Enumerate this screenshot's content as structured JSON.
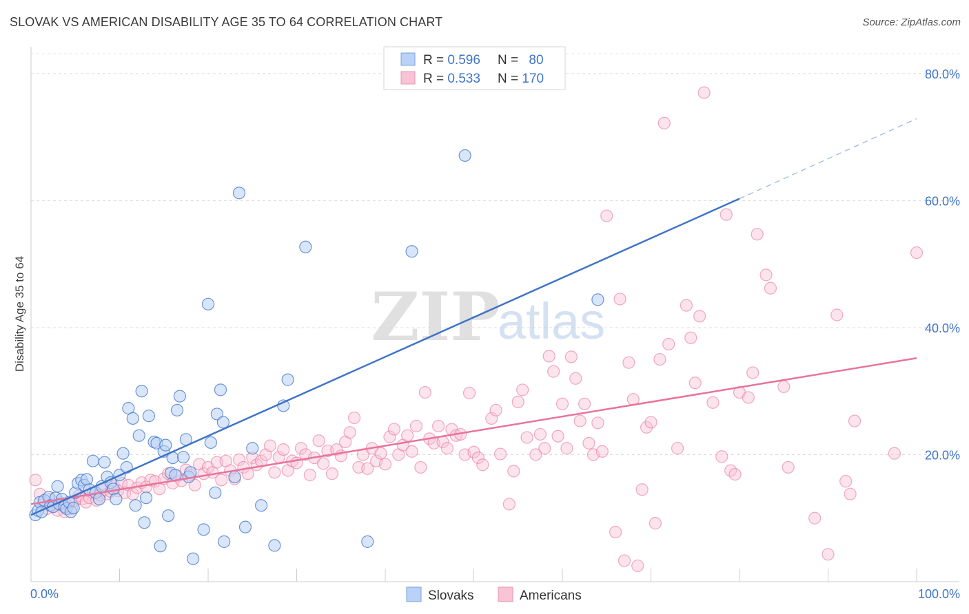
{
  "header": {
    "title": "SLOVAK VS AMERICAN DISABILITY AGE 35 TO 64 CORRELATION CHART",
    "source": "Source: ZipAtlas.com"
  },
  "watermark": {
    "zip": "ZIP",
    "atlas": "atlas"
  },
  "legend_top": {
    "rows": [
      {
        "r_label": "R = ",
        "r_value": "0.596",
        "n_label": "N = ",
        "n_value": "80"
      },
      {
        "r_label": "R = ",
        "r_value": "0.533",
        "n_label": "N = ",
        "n_value": "170"
      }
    ]
  },
  "legend_bottom": {
    "items": [
      "Slovaks",
      "Americans"
    ]
  },
  "chart_data": {
    "type": "scatter",
    "title": "SLOVAK VS AMERICAN DISABILITY AGE 35 TO 64 CORRELATION CHART",
    "xlabel": "",
    "ylabel": "Disability Age 35 to 64",
    "xlim": [
      0,
      100
    ],
    "ylim": [
      0,
      84
    ],
    "x_tick_labels": [
      "0.0%",
      "100.0%"
    ],
    "y_ticks": [
      20,
      40,
      60,
      80
    ],
    "y_tick_labels": [
      "20.0%",
      "40.0%",
      "60.0%",
      "80.0%"
    ],
    "grid": true,
    "legend_position": "top-center",
    "colors": {
      "slovaks": "#3f74c6",
      "americans": "#e8739c",
      "slovaks_fill": "#b9d2f5",
      "americans_fill": "#f8c3d4"
    },
    "series": [
      {
        "name": "Slovaks",
        "trend": {
          "x0": 0,
          "y0": 10.5,
          "x1": 80,
          "y1": 60.3,
          "dashed_to_x": 100,
          "dashed_to_y": 72.9
        },
        "points": [
          [
            0.5,
            10.5
          ],
          [
            0.8,
            11.2
          ],
          [
            1.0,
            12.5
          ],
          [
            1.2,
            11.0
          ],
          [
            1.5,
            12.8
          ],
          [
            2.0,
            13.3
          ],
          [
            2.2,
            12.0
          ],
          [
            2.5,
            11.8
          ],
          [
            2.8,
            13.2
          ],
          [
            3.0,
            15.0
          ],
          [
            3.2,
            12.2
          ],
          [
            3.5,
            13.0
          ],
          [
            3.8,
            11.8
          ],
          [
            4.0,
            11.5
          ],
          [
            4.3,
            12.5
          ],
          [
            4.5,
            11.0
          ],
          [
            4.8,
            11.6
          ],
          [
            5.0,
            14.0
          ],
          [
            5.3,
            15.5
          ],
          [
            5.7,
            16.0
          ],
          [
            6.0,
            15.2
          ],
          [
            6.3,
            16.1
          ],
          [
            6.6,
            14.5
          ],
          [
            7.0,
            19.0
          ],
          [
            7.3,
            14.0
          ],
          [
            7.7,
            13.0
          ],
          [
            8.0,
            15.0
          ],
          [
            8.3,
            18.8
          ],
          [
            8.6,
            16.5
          ],
          [
            9.0,
            15.6
          ],
          [
            9.3,
            14.6
          ],
          [
            9.6,
            13.0
          ],
          [
            10.0,
            16.8
          ],
          [
            10.4,
            20.2
          ],
          [
            10.8,
            18.0
          ],
          [
            11.0,
            27.3
          ],
          [
            11.5,
            25.7
          ],
          [
            11.8,
            12.0
          ],
          [
            12.2,
            23.0
          ],
          [
            12.5,
            30.0
          ],
          [
            12.8,
            9.3
          ],
          [
            13.0,
            13.2
          ],
          [
            13.3,
            26.1
          ],
          [
            13.9,
            22.0
          ],
          [
            14.2,
            21.8
          ],
          [
            14.6,
            5.6
          ],
          [
            15.0,
            20.5
          ],
          [
            15.2,
            21.5
          ],
          [
            15.5,
            10.4
          ],
          [
            15.8,
            17.1
          ],
          [
            16.0,
            19.5
          ],
          [
            16.3,
            16.8
          ],
          [
            16.5,
            27.0
          ],
          [
            16.8,
            29.2
          ],
          [
            17.2,
            19.6
          ],
          [
            17.5,
            22.4
          ],
          [
            17.8,
            16.5
          ],
          [
            18.0,
            17.2
          ],
          [
            18.3,
            3.6
          ],
          [
            19.5,
            8.2
          ],
          [
            20.0,
            43.7
          ],
          [
            20.3,
            21.9
          ],
          [
            20.8,
            14.0
          ],
          [
            21.0,
            26.4
          ],
          [
            21.4,
            30.2
          ],
          [
            21.7,
            25.1
          ],
          [
            21.8,
            6.3
          ],
          [
            23.0,
            16.5
          ],
          [
            23.5,
            61.2
          ],
          [
            24.2,
            8.6
          ],
          [
            25.0,
            21.0
          ],
          [
            26.0,
            12.0
          ],
          [
            27.5,
            5.7
          ],
          [
            28.5,
            27.7
          ],
          [
            29.0,
            31.8
          ],
          [
            31.0,
            52.7
          ],
          [
            38.0,
            6.3
          ],
          [
            43.0,
            52.0
          ],
          [
            49.0,
            67.1
          ],
          [
            64.0,
            44.4
          ]
        ]
      },
      {
        "name": "Americans",
        "trend": {
          "x0": 0,
          "y0": 12.2,
          "x1": 100,
          "y1": 35.2
        },
        "points": [
          [
            0.5,
            16.0
          ],
          [
            1.0,
            13.8
          ],
          [
            1.4,
            12.5
          ],
          [
            1.8,
            11.5
          ],
          [
            2.2,
            13.0
          ],
          [
            2.6,
            12.0
          ],
          [
            3.0,
            11.2
          ],
          [
            3.4,
            12.4
          ],
          [
            3.8,
            11.0
          ],
          [
            4.2,
            12.0
          ],
          [
            4.6,
            11.5
          ],
          [
            5.0,
            12.8
          ],
          [
            5.4,
            13.5
          ],
          [
            5.8,
            13.0
          ],
          [
            6.2,
            12.5
          ],
          [
            6.6,
            13.2
          ],
          [
            7.0,
            14.0
          ],
          [
            7.4,
            12.8
          ],
          [
            7.8,
            13.6
          ],
          [
            8.2,
            14.5
          ],
          [
            8.6,
            13.8
          ],
          [
            9.0,
            14.2
          ],
          [
            9.4,
            15.0
          ],
          [
            9.8,
            14.3
          ],
          [
            10.2,
            15.5
          ],
          [
            10.6,
            14.0
          ],
          [
            11.0,
            15.2
          ],
          [
            11.5,
            13.8
          ],
          [
            12.0,
            14.8
          ],
          [
            12.5,
            15.6
          ],
          [
            13.0,
            14.9
          ],
          [
            13.5,
            16.0
          ],
          [
            14.0,
            15.8
          ],
          [
            14.5,
            14.6
          ],
          [
            15.0,
            16.2
          ],
          [
            15.5,
            17.0
          ],
          [
            16.0,
            15.5
          ],
          [
            16.5,
            16.6
          ],
          [
            17.0,
            15.9
          ],
          [
            17.5,
            17.6
          ],
          [
            18.0,
            16.8
          ],
          [
            18.5,
            15.2
          ],
          [
            19.0,
            18.5
          ],
          [
            19.5,
            17.0
          ],
          [
            20.0,
            18.0
          ],
          [
            20.5,
            17.2
          ],
          [
            21.0,
            18.8
          ],
          [
            21.5,
            16.0
          ],
          [
            22.0,
            19.0
          ],
          [
            22.5,
            17.5
          ],
          [
            23.0,
            16.2
          ],
          [
            23.5,
            19.2
          ],
          [
            24.0,
            18.0
          ],
          [
            24.5,
            17.0
          ],
          [
            25.0,
            19.5
          ],
          [
            25.5,
            18.4
          ],
          [
            26.0,
            19.0
          ],
          [
            26.5,
            20.0
          ],
          [
            27.0,
            21.4
          ],
          [
            27.5,
            17.2
          ],
          [
            28.0,
            19.6
          ],
          [
            28.5,
            20.8
          ],
          [
            29.0,
            17.5
          ],
          [
            29.5,
            19.0
          ],
          [
            30.0,
            18.7
          ],
          [
            30.5,
            21.0
          ],
          [
            31.0,
            20.0
          ],
          [
            31.5,
            16.8
          ],
          [
            32.0,
            19.5
          ],
          [
            32.5,
            22.2
          ],
          [
            33.0,
            18.6
          ],
          [
            33.5,
            20.6
          ],
          [
            34.0,
            17.0
          ],
          [
            34.5,
            20.8
          ],
          [
            35.0,
            19.8
          ],
          [
            35.5,
            22.0
          ],
          [
            36.0,
            23.5
          ],
          [
            36.5,
            25.8
          ],
          [
            37.0,
            18.0
          ],
          [
            37.5,
            20.0
          ],
          [
            38.0,
            17.8
          ],
          [
            38.5,
            21.0
          ],
          [
            39.0,
            19.0
          ],
          [
            39.5,
            20.2
          ],
          [
            40.0,
            18.5
          ],
          [
            40.5,
            22.8
          ],
          [
            41.0,
            24.0
          ],
          [
            41.5,
            20.0
          ],
          [
            42.0,
            21.5
          ],
          [
            42.5,
            23.0
          ],
          [
            43.0,
            20.5
          ],
          [
            43.5,
            24.5
          ],
          [
            44.0,
            18.0
          ],
          [
            44.5,
            29.8
          ],
          [
            45.0,
            22.5
          ],
          [
            45.5,
            21.8
          ],
          [
            46.0,
            24.5
          ],
          [
            46.5,
            22.0
          ],
          [
            47.0,
            21.0
          ],
          [
            47.5,
            24.0
          ],
          [
            48.0,
            23.0
          ],
          [
            48.5,
            23.2
          ],
          [
            49.0,
            20.0
          ],
          [
            49.5,
            29.7
          ],
          [
            50.0,
            20.4
          ],
          [
            50.5,
            19.5
          ],
          [
            51.0,
            18.4
          ],
          [
            52.0,
            25.7
          ],
          [
            52.5,
            27.0
          ],
          [
            53.0,
            20.1
          ],
          [
            54.0,
            12.2
          ],
          [
            54.5,
            17.4
          ],
          [
            55.0,
            28.3
          ],
          [
            55.5,
            30.2
          ],
          [
            56.0,
            22.7
          ],
          [
            57.0,
            20.0
          ],
          [
            57.5,
            23.2
          ],
          [
            58.0,
            21.0
          ],
          [
            58.5,
            35.5
          ],
          [
            59.0,
            33.1
          ],
          [
            59.5,
            22.9
          ],
          [
            60.0,
            28.0
          ],
          [
            60.5,
            21.0
          ],
          [
            61.0,
            35.4
          ],
          [
            61.5,
            32.0
          ],
          [
            62.0,
            25.3
          ],
          [
            62.5,
            28.0
          ],
          [
            63.0,
            21.8
          ],
          [
            63.5,
            20.0
          ],
          [
            64.0,
            25.0
          ],
          [
            64.5,
            20.5
          ],
          [
            65.0,
            57.6
          ],
          [
            66.0,
            7.8
          ],
          [
            66.5,
            44.5
          ],
          [
            67.0,
            3.3
          ],
          [
            67.5,
            34.5
          ],
          [
            68.0,
            28.7
          ],
          [
            68.5,
            2.5
          ],
          [
            69.0,
            14.5
          ],
          [
            69.5,
            24.3
          ],
          [
            70.0,
            25.1
          ],
          [
            70.5,
            9.2
          ],
          [
            71.0,
            35.0
          ],
          [
            71.5,
            72.2
          ],
          [
            72.0,
            37.4
          ],
          [
            73.0,
            21.0
          ],
          [
            74.0,
            43.5
          ],
          [
            74.5,
            38.4
          ],
          [
            75.0,
            31.3
          ],
          [
            75.5,
            41.8
          ],
          [
            76.0,
            77.0
          ],
          [
            77.0,
            28.2
          ],
          [
            78.0,
            19.7
          ],
          [
            78.5,
            57.8
          ],
          [
            79.0,
            17.5
          ],
          [
            79.5,
            16.9
          ],
          [
            80.0,
            29.8
          ],
          [
            81.0,
            29.0
          ],
          [
            81.5,
            32.9
          ],
          [
            82.0,
            54.7
          ],
          [
            83.0,
            48.3
          ],
          [
            83.5,
            46.2
          ],
          [
            85.0,
            30.7
          ],
          [
            85.5,
            18.0
          ],
          [
            88.5,
            10.0
          ],
          [
            90.0,
            4.3
          ],
          [
            91.0,
            42.0
          ],
          [
            92.0,
            15.8
          ],
          [
            92.5,
            13.8
          ],
          [
            93.0,
            25.3
          ],
          [
            97.5,
            20.2
          ],
          [
            100.0,
            51.8
          ]
        ]
      }
    ]
  }
}
